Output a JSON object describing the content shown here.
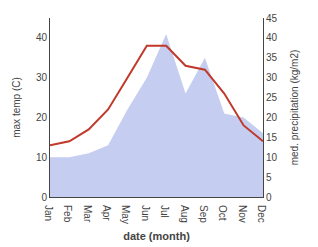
{
  "chart_data": {
    "type": "line",
    "categories": [
      "Jan",
      "Feb",
      "Mar",
      "Apr",
      "May",
      "Jun",
      "Jul",
      "Aug",
      "Sep",
      "Oct",
      "Nov",
      "Dec"
    ],
    "series": [
      {
        "type": "area",
        "color": "#c5cef0",
        "axis": "y2",
        "values": [
          10,
          10,
          11,
          13,
          22,
          30,
          41,
          26,
          35,
          21,
          20,
          16
        ]
      },
      {
        "type": "line",
        "color": "#c0392b",
        "values": [
          13,
          14,
          17,
          22,
          30,
          38,
          38,
          33,
          32,
          26,
          18,
          14
        ]
      }
    ],
    "xlabel": "date (month)",
    "ylabel": "max temp (C)",
    "y2label": "med. precipitation (kg/m2)",
    "ylim": [
      0,
      45
    ],
    "yticks": [
      0,
      10,
      20,
      30,
      40
    ],
    "y2lim": [
      0,
      45
    ],
    "y2ticks": [
      0,
      5,
      10,
      15,
      20,
      25,
      30,
      35,
      40,
      45
    ],
    "grid": false
  }
}
